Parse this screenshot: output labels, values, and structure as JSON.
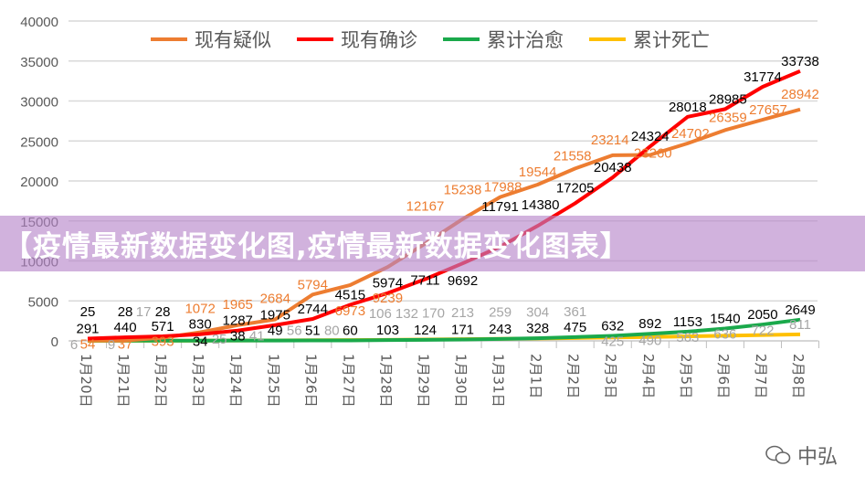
{
  "chart_data": {
    "type": "line",
    "categories": [
      "1月20日",
      "1月21日",
      "1月22日",
      "1月23日",
      "1月24日",
      "1月25日",
      "1月26日",
      "1月27日",
      "1月28日",
      "1月29日",
      "1月30日",
      "1月31日",
      "2月1日",
      "2月2日",
      "2月3日",
      "2月4日",
      "2月5日",
      "2月6日",
      "2月7日",
      "2月8日"
    ],
    "series": [
      {
        "name": "现有疑似",
        "color": "#ED7D31",
        "label_color": "#ED7D31",
        "values": [
          54,
          37,
          393,
          1072,
          1965,
          2684,
          5794,
          6973,
          9239,
          12167,
          15238,
          17988,
          19544,
          21558,
          23214,
          23260,
          24702,
          26359,
          27657,
          28942
        ]
      },
      {
        "name": "现有确诊",
        "color": "#FF0000",
        "label_color": "#000000",
        "values": [
          291,
          440,
          571,
          830,
          1287,
          1975,
          2744,
          4515,
          5974,
          7711,
          9692,
          11791,
          14380,
          17205,
          20438,
          24324,
          28018,
          28985,
          31774,
          33738
        ]
      },
      {
        "name": "累计治愈",
        "color": "#1AA94B",
        "label_color": "#000000",
        "values": [
          25,
          28,
          28,
          34,
          38,
          49,
          51,
          60,
          103,
          124,
          171,
          243,
          328,
          475,
          632,
          892,
          1153,
          1540,
          2050,
          2649
        ]
      },
      {
        "name": "累计死亡",
        "color": "#FFC000",
        "label_color": "#A6A6A6",
        "values": [
          6,
          9,
          17,
          25,
          41,
          56,
          80,
          106,
          132,
          170,
          213,
          259,
          304,
          361,
          425,
          490,
          563,
          636,
          722,
          811
        ]
      }
    ],
    "yticks": [
      "0",
      "5000",
      "10000",
      "15000",
      "20000",
      "25000",
      "30000",
      "35000",
      "40000"
    ],
    "ylim": [
      0,
      40000
    ],
    "grid": true,
    "legend": "top"
  },
  "banner": {
    "text": "【疫情最新数据变化图,疫情最新数据变化图表】"
  },
  "watermark": {
    "text": "中弘",
    "icon": "wechat-icon"
  }
}
